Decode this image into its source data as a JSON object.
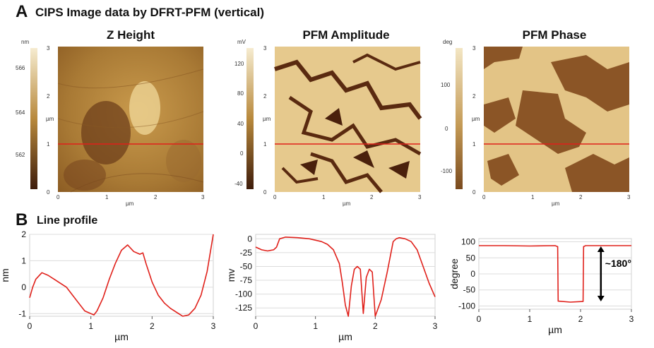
{
  "panel_a": {
    "letter": "A",
    "title": "CIPS Image data by DFRT-PFM (vertical)",
    "images": [
      {
        "title": "Z Height",
        "colorbar_unit": "nm",
        "colorbar_ticks": [
          "566",
          "564",
          "562"
        ],
        "axis_unit": "µm",
        "x_ticks": [
          "0",
          "1",
          "2",
          "3"
        ],
        "y_ticks": [
          "3",
          "2",
          "1",
          "0"
        ],
        "colors": {
          "low": "#4a2410",
          "mid": "#b58a3c",
          "high": "#f3e3b9"
        }
      },
      {
        "title": "PFM Amplitude",
        "colorbar_unit": "mV",
        "colorbar_ticks": [
          "120",
          "80",
          "40",
          "0",
          "-40"
        ],
        "axis_unit": "µm",
        "x_ticks": [
          "0",
          "1",
          "2",
          "3"
        ],
        "y_ticks": [
          "3",
          "2",
          "1",
          "0"
        ],
        "colors": {
          "low": "#3d1a0a",
          "mid": "#b0803a",
          "high": "#f2e2b8"
        }
      },
      {
        "title": "PFM Phase",
        "colorbar_unit": "deg",
        "colorbar_ticks": [
          "100",
          "0",
          "-100"
        ],
        "axis_unit": "µm",
        "x_ticks": [
          "0",
          "1",
          "2",
          "3"
        ],
        "y_ticks": [
          "3",
          "2",
          "1",
          "0"
        ],
        "colors": {
          "low": "#8a5a2a",
          "mid": "#c09050",
          "high": "#e8cf98"
        }
      }
    ],
    "red_line_color": "#e0201a"
  },
  "panel_b": {
    "letter": "B",
    "title": "Line profile",
    "line_color": "#e0201a"
  },
  "chart_data": [
    {
      "type": "line",
      "xlabel": "µm",
      "ylabel": "nm",
      "xlim": [
        0,
        3
      ],
      "ylim": [
        -1.1,
        2
      ],
      "x_ticks": [
        "0",
        "1",
        "2",
        "3"
      ],
      "y_ticks": [
        "2",
        "1",
        "0",
        "-1"
      ],
      "series": [
        {
          "x": [
            0,
            0.05,
            0.1,
            0.2,
            0.3,
            0.4,
            0.5,
            0.6,
            0.7,
            0.8,
            0.9,
            1.0,
            1.05,
            1.1,
            1.2,
            1.3,
            1.4,
            1.5,
            1.6,
            1.7,
            1.8,
            1.85,
            1.9,
            2.0,
            2.1,
            2.2,
            2.3,
            2.4,
            2.5,
            2.6,
            2.7,
            2.8,
            2.9,
            3.0
          ],
          "y": [
            -0.4,
            0.0,
            0.3,
            0.55,
            0.45,
            0.3,
            0.15,
            0.0,
            -0.3,
            -0.6,
            -0.9,
            -1.0,
            -1.05,
            -0.9,
            -0.4,
            0.3,
            0.9,
            1.4,
            1.6,
            1.35,
            1.25,
            1.3,
            0.9,
            0.2,
            -0.3,
            -0.6,
            -0.8,
            -0.95,
            -1.1,
            -1.05,
            -0.8,
            -0.3,
            0.6,
            2.0
          ]
        }
      ]
    },
    {
      "type": "line",
      "xlabel": "µm",
      "ylabel": "mv",
      "xlim": [
        0,
        3
      ],
      "ylim": [
        -140,
        8
      ],
      "x_ticks": [
        "0",
        "1",
        "2",
        "3"
      ],
      "y_ticks": [
        "0",
        "-25",
        "-50",
        "-75",
        "-100",
        "-125"
      ],
      "series": [
        {
          "x": [
            0,
            0.1,
            0.2,
            0.3,
            0.35,
            0.4,
            0.5,
            0.7,
            0.9,
            1.1,
            1.2,
            1.3,
            1.4,
            1.45,
            1.5,
            1.55,
            1.6,
            1.65,
            1.7,
            1.75,
            1.8,
            1.85,
            1.9,
            1.95,
            2.0,
            2.05,
            2.1,
            2.2,
            2.3,
            2.35,
            2.4,
            2.5,
            2.6,
            2.7,
            2.8,
            2.9,
            3.0
          ],
          "y": [
            -15,
            -20,
            -22,
            -20,
            -15,
            0,
            3,
            2,
            0,
            -5,
            -10,
            -20,
            -45,
            -80,
            -120,
            -140,
            -85,
            -55,
            -50,
            -55,
            -135,
            -70,
            -55,
            -60,
            -140,
            -125,
            -110,
            -60,
            -5,
            0,
            2,
            0,
            -5,
            -20,
            -50,
            -80,
            -105
          ]
        }
      ]
    },
    {
      "type": "line",
      "xlabel": "µm",
      "ylabel": "degree",
      "xlim": [
        0,
        3
      ],
      "ylim": [
        -110,
        110
      ],
      "x_ticks": [
        "0",
        "1",
        "2",
        "3"
      ],
      "y_ticks": [
        "100",
        "50",
        "0",
        "-50",
        "-100"
      ],
      "annotation": "~180°",
      "series": [
        {
          "x": [
            0,
            0.5,
            1.0,
            1.5,
            1.55,
            1.56,
            1.8,
            2.05,
            2.06,
            2.1,
            2.5,
            3.0
          ],
          "y": [
            88,
            88,
            87,
            88,
            85,
            -85,
            -88,
            -86,
            85,
            88,
            88,
            88
          ]
        }
      ]
    }
  ]
}
